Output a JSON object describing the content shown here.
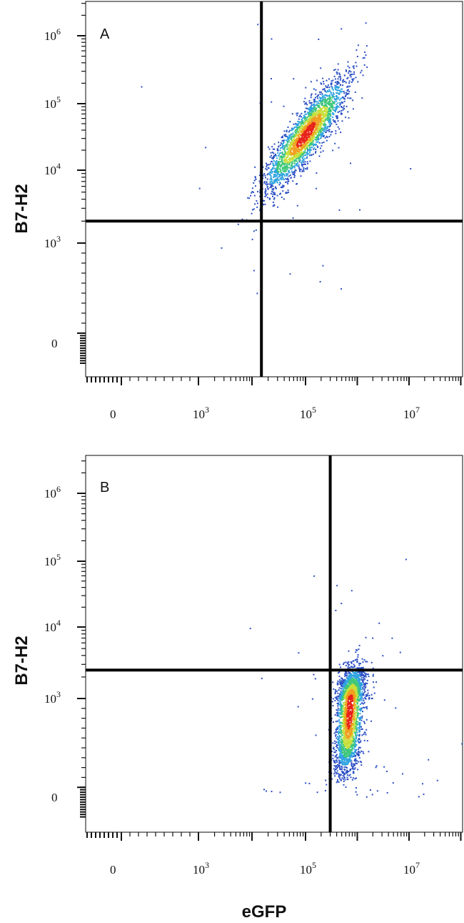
{
  "chart_data": [
    {
      "type": "scatter",
      "panel_label": "A",
      "xlabel": "",
      "ylabel": "B7-H2",
      "x_scale": "log",
      "y_scale": "log",
      "xlim": [
        -600,
        100000000
      ],
      "ylim": [
        -200,
        3000000
      ],
      "x_ticks": [
        {
          "value": 0,
          "base": "0",
          "exp": ""
        },
        {
          "value": 1000,
          "base": "10",
          "exp": "3"
        },
        {
          "value": 100000,
          "base": "10",
          "exp": "5"
        },
        {
          "value": 10000000,
          "base": "10",
          "exp": "7"
        }
      ],
      "y_ticks": [
        {
          "value": 0,
          "base": "0",
          "exp": ""
        },
        {
          "value": 1000,
          "base": "10",
          "exp": "3"
        },
        {
          "value": 10000,
          "base": "10",
          "exp": "4"
        },
        {
          "value": 100000,
          "base": "10",
          "exp": "5"
        },
        {
          "value": 1000000,
          "base": "10",
          "exp": "6"
        }
      ],
      "quadrant_gate": {
        "x": 15000,
        "y": 2000
      },
      "populations": [
        {
          "x_center": 100000,
          "y_center": 35000,
          "spread_log_major": 0.55,
          "spread_log_minor": 0.14,
          "slope": 1.05,
          "density": "high"
        }
      ],
      "density_colors": [
        "#2b4fc4",
        "#2fa3e0",
        "#3fc77a",
        "#c9df3a",
        "#f0a020",
        "#e8231b"
      ]
    },
    {
      "type": "scatter",
      "panel_label": "B",
      "xlabel": "eGFP",
      "ylabel": "B7-H2",
      "x_scale": "log",
      "y_scale": "log",
      "xlim": [
        -600,
        100000000
      ],
      "ylim": [
        -200,
        3000000
      ],
      "x_ticks": [
        {
          "value": 0,
          "base": "0",
          "exp": ""
        },
        {
          "value": 1000,
          "base": "10",
          "exp": "3"
        },
        {
          "value": 100000,
          "base": "10",
          "exp": "5"
        },
        {
          "value": 10000000,
          "base": "10",
          "exp": "7"
        }
      ],
      "y_ticks": [
        {
          "value": 0,
          "base": "0",
          "exp": ""
        },
        {
          "value": 1000,
          "base": "10",
          "exp": "3"
        },
        {
          "value": 10000,
          "base": "10",
          "exp": "4"
        },
        {
          "value": 100000,
          "base": "10",
          "exp": "5"
        },
        {
          "value": 1000000,
          "base": "10",
          "exp": "6"
        }
      ],
      "quadrant_gate": {
        "x": 300000,
        "y": 2500
      },
      "populations": [
        {
          "x_center": 700000,
          "y_center": 900,
          "spread_log_major": 0.25,
          "spread_log_minor": 0.12,
          "slope": 3.5,
          "density": "high"
        }
      ],
      "density_colors": [
        "#2b4fc4",
        "#2fa3e0",
        "#3fc77a",
        "#c9df3a",
        "#f0a020",
        "#e8231b"
      ]
    }
  ]
}
